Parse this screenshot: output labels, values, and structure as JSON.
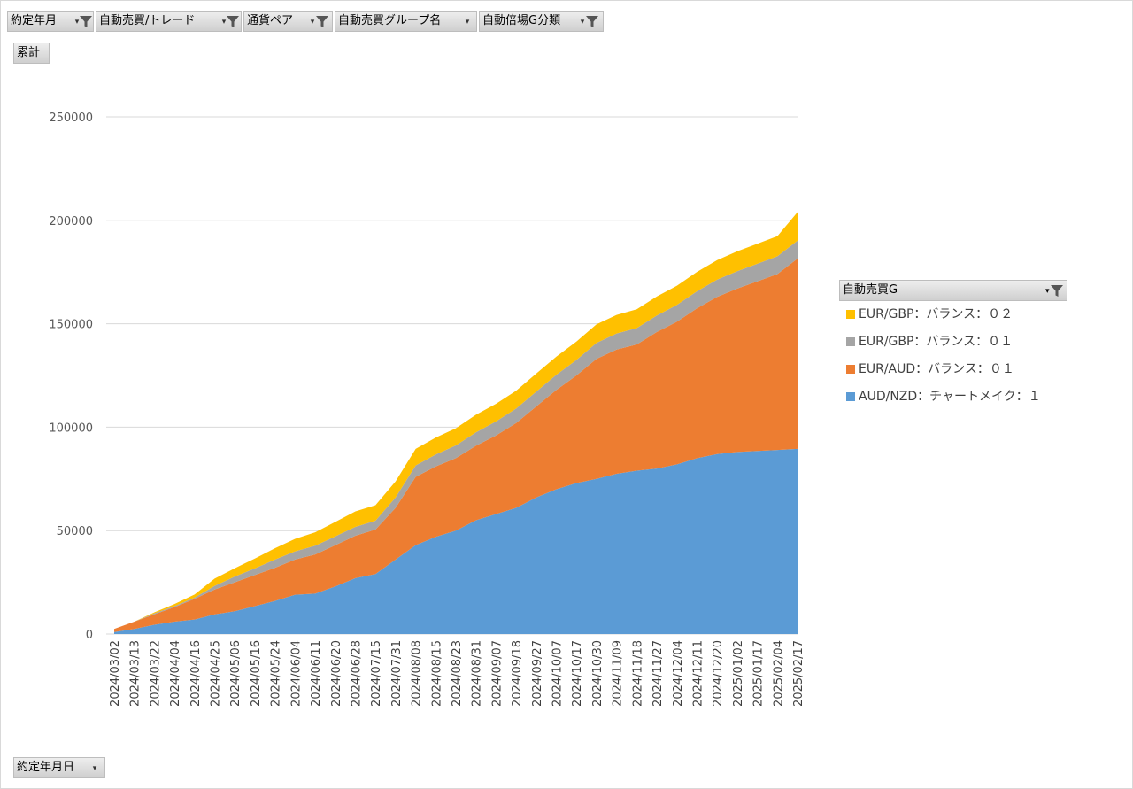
{
  "filters": [
    {
      "label": "約定年月",
      "icon": "funnel-icon"
    },
    {
      "label": "自動売買/トレード",
      "icon": "funnel-icon"
    },
    {
      "label": "通貨ペア",
      "icon": "funnel-icon"
    },
    {
      "label": "自動売買グループ名",
      "icon": "dropdown-arrow-icon"
    },
    {
      "label": "自動倍場G分類",
      "icon": "funnel-icon"
    }
  ],
  "value_field": "累計",
  "axis_field": "約定年月日",
  "legend": {
    "title": "自動売買G",
    "icon": "funnel-icon"
  },
  "colors": {
    "AUD/NZD": "#5b9bd5",
    "EUR/AUD": "#ed7d31",
    "EUR/GBP_01": "#a5a5a5",
    "EUR/GBP_02": "#ffc000"
  },
  "chart_data": {
    "type": "area",
    "stacked": true,
    "title": "",
    "xlabel": "",
    "ylabel": "",
    "ylim": [
      0,
      250000
    ],
    "yticks": [
      0,
      50000,
      100000,
      150000,
      200000,
      250000
    ],
    "grid": true,
    "legend_position": "right",
    "x": [
      "2024/03/02",
      "2024/03/13",
      "2024/03/22",
      "2024/04/04",
      "2024/04/16",
      "2024/04/25",
      "2024/05/06",
      "2024/05/16",
      "2024/05/24",
      "2024/06/04",
      "2024/06/11",
      "2024/06/20",
      "2024/06/28",
      "2024/07/15",
      "2024/07/31",
      "2024/08/08",
      "2024/08/15",
      "2024/08/23",
      "2024/08/31",
      "2024/09/07",
      "2024/09/18",
      "2024/09/27",
      "2024/10/07",
      "2024/10/17",
      "2024/10/30",
      "2024/11/09",
      "2024/11/18",
      "2024/11/27",
      "2024/12/04",
      "2024/12/11",
      "2024/12/20",
      "2025/01/02",
      "2025/01/17",
      "2025/02/04",
      "2025/02/17"
    ],
    "series": [
      {
        "name": "AUD/NZD：チャートメイク：１",
        "values": [
          1000,
          2500,
          4500,
          6000,
          7000,
          9500,
          11000,
          13500,
          16000,
          19000,
          19500,
          23000,
          27000,
          29000,
          36000,
          43000,
          47000,
          50000,
          55000,
          58000,
          61000,
          66000,
          70000,
          73000,
          75000,
          77500,
          79000,
          80000,
          82000,
          85000,
          87000,
          88000,
          88500,
          89000,
          89500
        ]
      },
      {
        "name": "EUR/AUD：バランス：０１",
        "values": [
          1500,
          3500,
          5000,
          7000,
          10000,
          12000,
          14000,
          15000,
          16000,
          17000,
          19000,
          20000,
          20500,
          21500,
          25000,
          33000,
          34000,
          35000,
          36000,
          38000,
          41000,
          44000,
          48000,
          52000,
          58000,
          60000,
          61000,
          66000,
          69000,
          72500,
          76000,
          79000,
          82000,
          85000,
          92000
        ]
      },
      {
        "name": "EUR/GBP：バランス：０１",
        "values": [
          0,
          0,
          500,
          500,
          600,
          1800,
          2800,
          3200,
          4000,
          4000,
          4200,
          4200,
          4300,
          4300,
          5000,
          5500,
          5800,
          6200,
          6500,
          6800,
          7000,
          7200,
          7300,
          7500,
          7700,
          7800,
          7900,
          8000,
          8100,
          8200,
          8300,
          8400,
          8500,
          8600,
          8700
        ]
      },
      {
        "name": "EUR/GBP：バランス：０２",
        "values": [
          0,
          0,
          500,
          1000,
          1500,
          3500,
          4000,
          4800,
          5500,
          6000,
          6500,
          7000,
          7500,
          7500,
          7800,
          8000,
          8200,
          8300,
          8500,
          8500,
          8600,
          8700,
          8800,
          8900,
          9000,
          9000,
          9100,
          9200,
          9300,
          9400,
          9500,
          9600,
          9700,
          9800,
          13800
        ]
      }
    ]
  }
}
